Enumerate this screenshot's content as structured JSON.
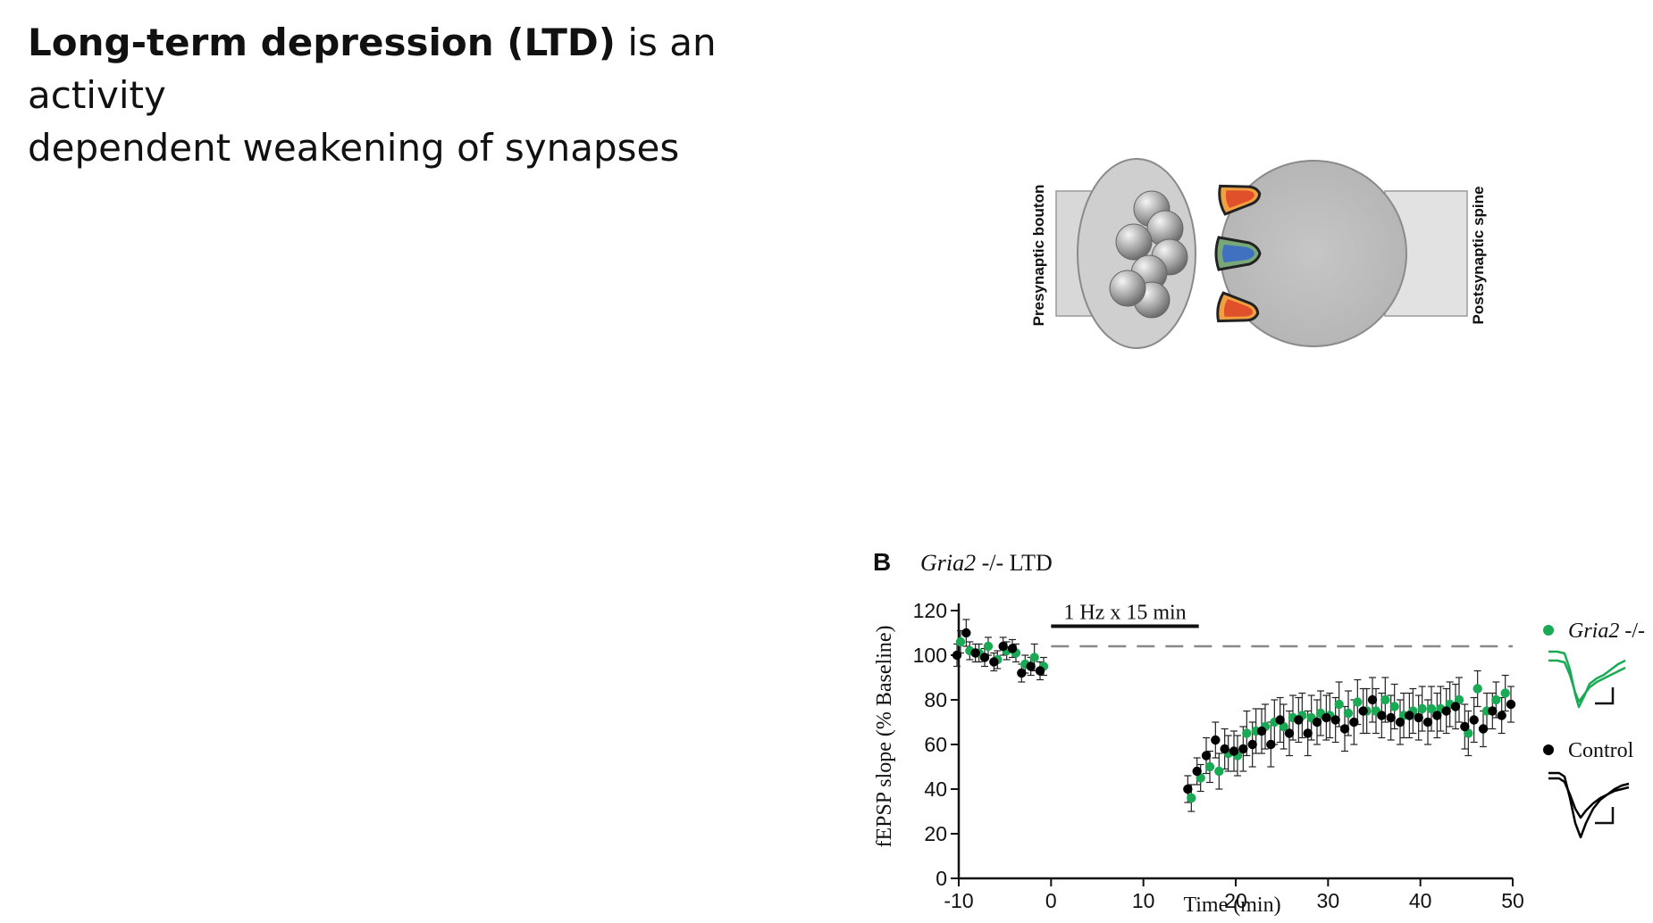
{
  "slide": {
    "title_bold": "Long-term depression (LTD)",
    "title_rest_1": " is an activity",
    "title_line_2": "dependent weakening of synapses"
  },
  "synapse_diagram": {
    "presynaptic_label": "Presynaptic bouton",
    "postsynaptic_label": "Postsynaptic spine",
    "colors": {
      "membrane": "#d0d0d0",
      "vesicle": "#8a8a8a",
      "receptor_red": "#e0502a",
      "receptor_orange": "#f0a040",
      "receptor_blue": "#4070c0",
      "receptor_green": "#70a070"
    }
  },
  "chart_data": {
    "type": "scatter",
    "panel_letter": "B",
    "title_italic": "Gria2",
    "title_rest": " -/- LTD",
    "xlabel": "Time (min)",
    "ylabel": "fEPSP slope (% Baseline)",
    "xlim": [
      -10,
      50
    ],
    "ylim": [
      0,
      120
    ],
    "xticks": [
      -10,
      0,
      10,
      20,
      30,
      40,
      50
    ],
    "yticks": [
      0,
      20,
      40,
      60,
      80,
      100,
      120
    ],
    "stimulus": {
      "label": "1 Hz x 15 min",
      "start": 0,
      "end": 16
    },
    "baseline_level": 104,
    "legend": [
      {
        "name_italic": "Gria2",
        "name_rest": " -/-",
        "color": "#1aaa55"
      },
      {
        "name_italic": "",
        "name_rest": "Control",
        "color": "#000000"
      }
    ],
    "series": [
      {
        "name": "Gria2 -/-",
        "color": "#1aaa55",
        "x": [
          -10,
          -9,
          -8,
          -7,
          -6,
          -5,
          -4,
          -3,
          -2,
          -1,
          15,
          16,
          17,
          18,
          19,
          20,
          21,
          22,
          23,
          24,
          25,
          26,
          27,
          28,
          29,
          30,
          31,
          32,
          33,
          34,
          35,
          36,
          37,
          38,
          39,
          40,
          41,
          42,
          43,
          44,
          45,
          46,
          47,
          48,
          49
        ],
        "y": [
          106,
          102,
          101,
          104,
          98,
          102,
          101,
          96,
          99,
          95,
          36,
          45,
          50,
          48,
          56,
          55,
          65,
          66,
          68,
          70,
          68,
          72,
          73,
          72,
          74,
          73,
          78,
          74,
          79,
          75,
          75,
          80,
          77,
          73,
          75,
          76,
          76,
          76,
          78,
          80,
          65,
          85,
          75,
          80,
          83
        ],
        "err": [
          5,
          4,
          4,
          4,
          4,
          4,
          4,
          4,
          6,
          4,
          6,
          6,
          7,
          8,
          8,
          9,
          10,
          10,
          10,
          10,
          10,
          10,
          10,
          10,
          10,
          10,
          10,
          10,
          10,
          10,
          10,
          10,
          10,
          10,
          10,
          10,
          10,
          10,
          10,
          10,
          10,
          8,
          8,
          8,
          8
        ]
      },
      {
        "name": "Control",
        "color": "#000000",
        "x": [
          -10,
          -9,
          -8,
          -7,
          -6,
          -5,
          -4,
          -3,
          -2,
          -1,
          15,
          16,
          17,
          18,
          19,
          20,
          21,
          22,
          23,
          24,
          25,
          26,
          27,
          28,
          29,
          30,
          31,
          32,
          33,
          34,
          35,
          36,
          37,
          38,
          39,
          40,
          41,
          42,
          43,
          44,
          45,
          46,
          47,
          48,
          49,
          50
        ],
        "y": [
          100,
          110,
          101,
          99,
          97,
          104,
          103,
          92,
          95,
          93,
          40,
          48,
          55,
          62,
          58,
          57,
          58,
          60,
          66,
          60,
          71,
          65,
          71,
          65,
          70,
          72,
          71,
          67,
          70,
          75,
          80,
          73,
          72,
          70,
          73,
          72,
          70,
          73,
          75,
          77,
          68,
          71,
          67,
          75,
          73,
          78
        ],
        "err": [
          5,
          6,
          4,
          4,
          4,
          4,
          4,
          4,
          4,
          4,
          6,
          6,
          8,
          8,
          9,
          9,
          10,
          10,
          10,
          10,
          10,
          10,
          10,
          10,
          10,
          10,
          10,
          10,
          10,
          10,
          10,
          10,
          10,
          10,
          10,
          10,
          10,
          10,
          10,
          10,
          10,
          10,
          8,
          8,
          8,
          8
        ]
      }
    ]
  }
}
